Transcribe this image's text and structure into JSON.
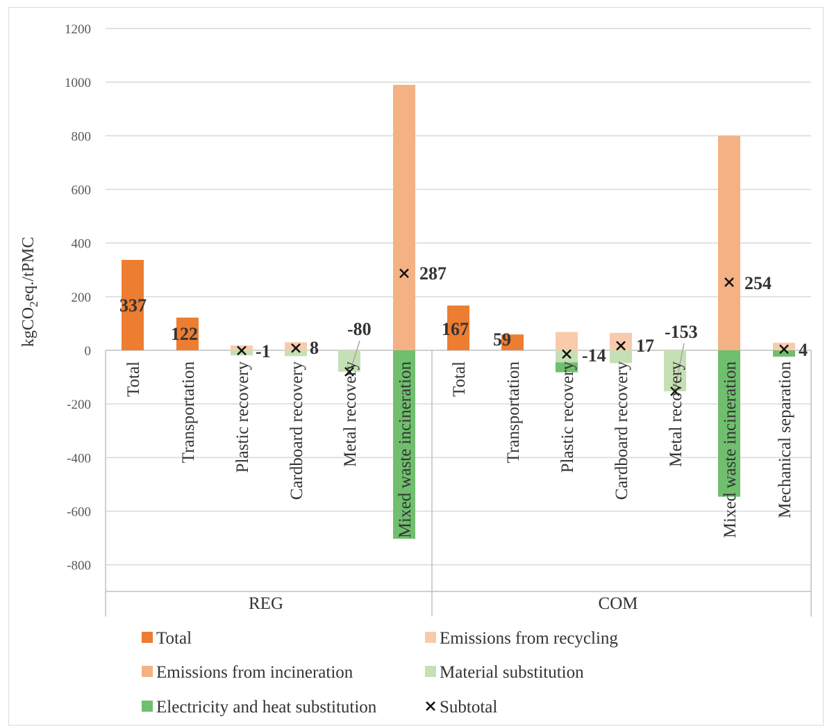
{
  "chart_data": {
    "type": "bar",
    "stacked": true,
    "ylabel": "kgCO2eq./tPMC",
    "ylim": [
      -800,
      1200
    ],
    "yticks": [
      -800,
      -600,
      -400,
      -200,
      0,
      200,
      400,
      600,
      800,
      1000,
      1200
    ],
    "ytick_labels": [
      "-800",
      "-600",
      "-400",
      "-200",
      "0",
      "200",
      "400",
      "600",
      "800",
      "1000",
      "1200"
    ],
    "grid": true,
    "legend_position": "bottom",
    "groups": [
      {
        "name": "REG",
        "categories": [
          "Total",
          "Transportation",
          "Plastic recovery",
          "Cardboard recovery",
          "Metal recovery",
          "Mixed waste incineration"
        ]
      },
      {
        "name": "COM",
        "categories": [
          "Total",
          "Transportation",
          "Plastic recovery",
          "Cardboard recovery",
          "Metal recovery",
          "Mixed waste incineration",
          "Mechanical separation"
        ]
      }
    ],
    "series": [
      {
        "name": "Total",
        "color": "#ed7d31",
        "values": [
          337,
          122,
          0,
          0,
          0,
          0,
          167,
          59,
          0,
          0,
          0,
          0,
          0
        ]
      },
      {
        "name": "Emissions from recycling",
        "color": "#f8cbad",
        "values": [
          0,
          0,
          18,
          30,
          0,
          0,
          0,
          0,
          68,
          65,
          0,
          0,
          28
        ]
      },
      {
        "name": "Emissions from incineration",
        "color": "#f4b183",
        "values": [
          0,
          0,
          0,
          0,
          0,
          990,
          0,
          0,
          0,
          0,
          0,
          800,
          0
        ]
      },
      {
        "name": "Material substitution",
        "color": "#c5e0b4",
        "values": [
          0,
          0,
          -19,
          -22,
          -80,
          0,
          0,
          0,
          -45,
          -48,
          -153,
          0,
          0
        ]
      },
      {
        "name": "Electricity and heat substitution",
        "color": "#70bf6e",
        "values": [
          0,
          0,
          0,
          0,
          0,
          -703,
          0,
          0,
          -37,
          0,
          0,
          -546,
          -24
        ]
      },
      {
        "name": "Subtotal",
        "marker": "x",
        "color": "#111111",
        "values": [
          null,
          null,
          -1,
          8,
          -80,
          287,
          null,
          null,
          -14,
          17,
          -153,
          254,
          4
        ]
      }
    ],
    "data_labels": [
      "337",
      "122",
      "-1",
      "8",
      "-80",
      "287",
      "167",
      "59",
      "-14",
      "17",
      "-153",
      "254",
      "4"
    ]
  }
}
